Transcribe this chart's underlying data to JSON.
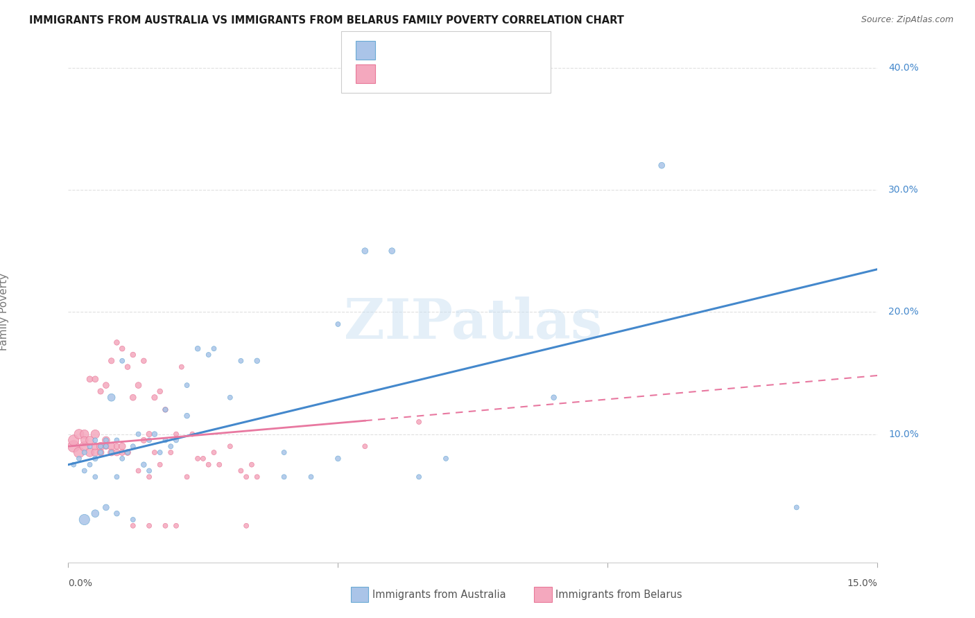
{
  "title": "IMMIGRANTS FROM AUSTRALIA VS IMMIGRANTS FROM BELARUS FAMILY POVERTY CORRELATION CHART",
  "source": "Source: ZipAtlas.com",
  "ylabel": "Family Poverty",
  "xlim": [
    0.0,
    0.15
  ],
  "ylim": [
    -0.005,
    0.42
  ],
  "background_color": "#ffffff",
  "grid_color": "#e0e0e0",
  "australia_fill": "#aac4e8",
  "australia_edge": "#6aaad4",
  "belarus_fill": "#f4a8be",
  "belarus_edge": "#e87898",
  "australia_line_color": "#4488cc",
  "belarus_line_color": "#e878a0",
  "legend_blue": "#4488cc",
  "legend_text_color": "#333333",
  "legend_label_australia": "Immigrants from Australia",
  "legend_label_belarus": "Immigrants from Belarus",
  "australia_scatter_x": [
    0.001,
    0.002,
    0.003,
    0.003,
    0.004,
    0.004,
    0.005,
    0.005,
    0.005,
    0.006,
    0.006,
    0.007,
    0.007,
    0.008,
    0.008,
    0.009,
    0.009,
    0.01,
    0.01,
    0.011,
    0.012,
    0.013,
    0.014,
    0.015,
    0.016,
    0.017,
    0.018,
    0.019,
    0.02,
    0.022,
    0.024,
    0.026,
    0.03,
    0.035,
    0.04,
    0.045,
    0.05,
    0.055,
    0.06,
    0.065,
    0.07,
    0.09,
    0.11,
    0.135,
    0.003,
    0.005,
    0.007,
    0.009,
    0.012,
    0.015,
    0.018,
    0.022,
    0.027,
    0.032,
    0.04,
    0.05
  ],
  "australia_scatter_y": [
    0.075,
    0.08,
    0.07,
    0.085,
    0.09,
    0.075,
    0.08,
    0.065,
    0.095,
    0.085,
    0.09,
    0.09,
    0.095,
    0.085,
    0.13,
    0.065,
    0.095,
    0.08,
    0.16,
    0.085,
    0.09,
    0.1,
    0.075,
    0.095,
    0.1,
    0.085,
    0.095,
    0.09,
    0.095,
    0.14,
    0.17,
    0.165,
    0.13,
    0.16,
    0.085,
    0.065,
    0.08,
    0.25,
    0.25,
    0.065,
    0.08,
    0.13,
    0.32,
    0.04,
    0.03,
    0.035,
    0.04,
    0.035,
    0.03,
    0.07,
    0.12,
    0.115,
    0.17,
    0.16,
    0.065,
    0.19
  ],
  "australia_scatter_size": [
    25,
    25,
    25,
    25,
    25,
    25,
    30,
    25,
    25,
    25,
    25,
    25,
    25,
    25,
    60,
    25,
    25,
    25,
    25,
    25,
    25,
    25,
    30,
    25,
    30,
    25,
    25,
    25,
    25,
    25,
    30,
    25,
    25,
    30,
    25,
    25,
    30,
    40,
    40,
    25,
    25,
    30,
    40,
    25,
    120,
    60,
    40,
    30,
    25,
    25,
    25,
    30,
    25,
    25,
    25,
    25
  ],
  "belarus_scatter_x": [
    0.001,
    0.001,
    0.002,
    0.002,
    0.003,
    0.003,
    0.003,
    0.004,
    0.004,
    0.004,
    0.005,
    0.005,
    0.005,
    0.005,
    0.006,
    0.006,
    0.006,
    0.007,
    0.007,
    0.007,
    0.008,
    0.008,
    0.008,
    0.009,
    0.009,
    0.009,
    0.01,
    0.01,
    0.01,
    0.011,
    0.011,
    0.012,
    0.012,
    0.013,
    0.013,
    0.014,
    0.014,
    0.015,
    0.015,
    0.016,
    0.016,
    0.017,
    0.017,
    0.018,
    0.019,
    0.02,
    0.021,
    0.022,
    0.023,
    0.024,
    0.025,
    0.026,
    0.027,
    0.028,
    0.03,
    0.032,
    0.034,
    0.035,
    0.055,
    0.065,
    0.033,
    0.033,
    0.02,
    0.018,
    0.015,
    0.012
  ],
  "belarus_scatter_y": [
    0.09,
    0.095,
    0.085,
    0.1,
    0.09,
    0.1,
    0.095,
    0.085,
    0.095,
    0.145,
    0.1,
    0.085,
    0.09,
    0.145,
    0.09,
    0.085,
    0.135,
    0.095,
    0.09,
    0.14,
    0.09,
    0.085,
    0.16,
    0.085,
    0.09,
    0.175,
    0.09,
    0.085,
    0.17,
    0.085,
    0.155,
    0.13,
    0.165,
    0.14,
    0.07,
    0.095,
    0.16,
    0.1,
    0.065,
    0.13,
    0.085,
    0.135,
    0.075,
    0.12,
    0.085,
    0.1,
    0.155,
    0.065,
    0.1,
    0.08,
    0.08,
    0.075,
    0.085,
    0.075,
    0.09,
    0.07,
    0.075,
    0.065,
    0.09,
    0.11,
    0.065,
    0.025,
    0.025,
    0.025,
    0.025,
    0.025
  ],
  "belarus_scatter_size": [
    150,
    120,
    120,
    100,
    100,
    80,
    60,
    80,
    70,
    40,
    80,
    60,
    50,
    40,
    70,
    50,
    35,
    60,
    40,
    40,
    60,
    50,
    35,
    50,
    35,
    30,
    50,
    40,
    30,
    40,
    30,
    40,
    30,
    40,
    25,
    35,
    30,
    35,
    25,
    35,
    25,
    30,
    25,
    30,
    25,
    25,
    25,
    25,
    25,
    25,
    25,
    25,
    25,
    25,
    25,
    25,
    25,
    25,
    25,
    25,
    25,
    25,
    25,
    25,
    25,
    25
  ],
  "watermark_text": "ZIPatlas",
  "aus_line": [
    0.0,
    0.15,
    0.075,
    0.235
  ],
  "bel_solid": [
    0.0,
    0.055,
    0.09,
    0.111
  ],
  "bel_dash": [
    0.055,
    0.15,
    0.111,
    0.148
  ]
}
